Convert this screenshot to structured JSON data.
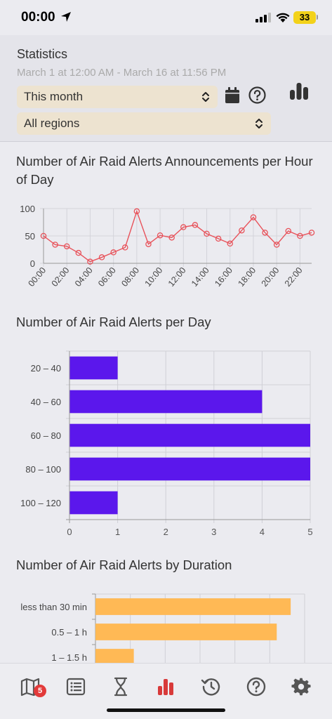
{
  "status": {
    "time": "00:00",
    "battery": "33"
  },
  "header": {
    "title": "Statistics",
    "range": "March 1 at 12:00 AM - March 16 at 11:56 PM",
    "period_select": "This month",
    "region_select": "All regions"
  },
  "charts": {
    "hourly_title": "Number of Air Raid Alerts Announcements per Hour of Day",
    "daily_title": "Number of Air Raid Alerts per Day",
    "duration_title": "Number of Air Raid Alerts by Duration"
  },
  "chart_data": [
    {
      "type": "line",
      "title": "Number of Air Raid Alerts Announcements per Hour of Day",
      "x": [
        "00:00",
        "01:00",
        "02:00",
        "03:00",
        "04:00",
        "05:00",
        "06:00",
        "07:00",
        "08:00",
        "09:00",
        "10:00",
        "11:00",
        "12:00",
        "13:00",
        "14:00",
        "15:00",
        "16:00",
        "17:00",
        "18:00",
        "19:00",
        "20:00",
        "21:00",
        "22:00",
        "23:00"
      ],
      "x_tick_labels": [
        "00:00",
        "02:00",
        "04:00",
        "06:00",
        "08:00",
        "10:00",
        "12:00",
        "14:00",
        "16:00",
        "18:00",
        "20:00",
        "22:00"
      ],
      "values": [
        50,
        34,
        31,
        19,
        3,
        11,
        20,
        29,
        95,
        35,
        51,
        47,
        66,
        70,
        54,
        45,
        36,
        60,
        84,
        56,
        34,
        59,
        50,
        56
      ],
      "ylim": [
        0,
        100
      ],
      "y_ticks": [
        0,
        50,
        100
      ],
      "color": "#e8525a",
      "grid": true
    },
    {
      "type": "bar",
      "orientation": "horizontal",
      "title": "Number of Air Raid Alerts per Day",
      "categories": [
        "20 – 40",
        "40 – 60",
        "60 – 80",
        "80 – 100",
        "100 – 120"
      ],
      "values": [
        1,
        4,
        5,
        5,
        1
      ],
      "xlim": [
        0,
        5
      ],
      "x_ticks": [
        0,
        1,
        2,
        3,
        4,
        5
      ],
      "color": "#5b17ec",
      "grid": true
    },
    {
      "type": "bar",
      "orientation": "horizontal",
      "title": "Number of Air Raid Alerts by Duration",
      "categories": [
        "less than 30 min",
        "0.5 – 1 h",
        "1 – 1.5 h"
      ],
      "values": [
        28,
        26,
        5.5
      ],
      "color": "#ffb955",
      "grid": true
    }
  ],
  "tabbar": {
    "items": [
      "map-icon",
      "list-icon",
      "hourglass-icon",
      "stats-icon",
      "history-icon",
      "help-icon",
      "settings-icon"
    ],
    "active": "stats-icon",
    "map_badge": "5",
    "active_color": "#d83a3a",
    "inactive_color": "#555555"
  }
}
